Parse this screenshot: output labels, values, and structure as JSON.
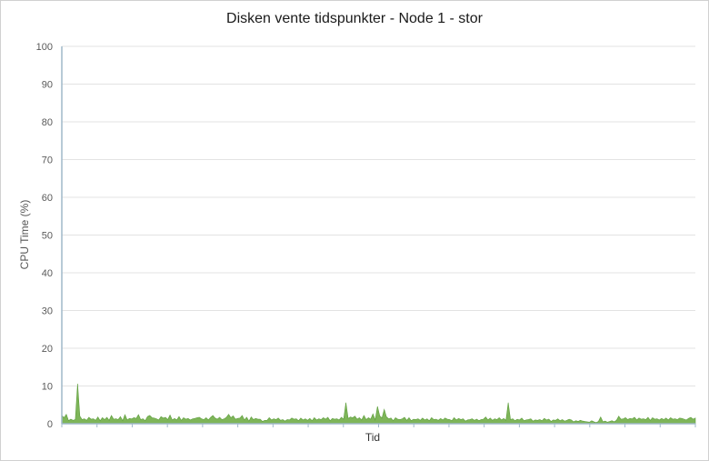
{
  "chart_data": {
    "type": "area",
    "title": "Disken vente tidspunkter - Node 1 - stor",
    "xlabel": "Tid",
    "ylabel": "CPU Time (%)",
    "ylim": [
      0,
      100
    ],
    "yticks": [
      0,
      10,
      20,
      30,
      40,
      50,
      60,
      70,
      80,
      90,
      100
    ],
    "grid": true,
    "legend": "none",
    "colors": {
      "fill": "#70ad47",
      "stroke": "#5b9c3a",
      "grid": "#e3e3e3",
      "axis": "#9fb8c9"
    },
    "series": [
      {
        "values": [
          2.2,
          1.6,
          2.5,
          0.8,
          1.2,
          0.9,
          1.1,
          10.6,
          2.0,
          1.1,
          1.3,
          0.9,
          1.7,
          1.2,
          1.3,
          0.9,
          1.8,
          0.8,
          1.6,
          1.1,
          1.7,
          0.9,
          2.2,
          1.2,
          1.3,
          1.1,
          1.9,
          0.8,
          2.4,
          1.0,
          1.4,
          1.3,
          1.6,
          1.4,
          2.4,
          1.1,
          1.3,
          0.8,
          1.9,
          2.2,
          1.6,
          1.5,
          1.3,
          1.0,
          1.9,
          1.5,
          1.7,
          1.1,
          2.3,
          1.0,
          1.4,
          1.0,
          1.9,
          0.9,
          1.6,
          1.2,
          1.4,
          1.0,
          1.3,
          1.4,
          1.6,
          1.7,
          1.3,
          1.1,
          1.6,
          1.0,
          1.7,
          2.2,
          1.5,
          1.2,
          1.7,
          1.1,
          1.3,
          1.7,
          2.5,
          1.6,
          2.1,
          1.2,
          1.4,
          1.5,
          2.2,
          1.0,
          1.7,
          0.7,
          1.8,
          1.1,
          1.4,
          1.2,
          1.2,
          0.6,
          0.9,
          0.9,
          1.6,
          1.0,
          1.3,
          1.1,
          1.5,
          0.9,
          1.1,
          0.7,
          1.1,
          1.0,
          1.5,
          1.2,
          1.3,
          0.8,
          1.5,
          1.0,
          1.3,
          0.9,
          1.4,
          0.8,
          1.6,
          1.0,
          1.3,
          1.1,
          1.6,
          1.2,
          1.7,
          0.8,
          1.4,
          1.2,
          1.3,
          1.0,
          1.7,
          1.2,
          5.6,
          1.4,
          1.8,
          1.6,
          2.0,
          1.2,
          1.6,
          1.0,
          2.2,
          1.1,
          1.6,
          1.2,
          2.6,
          1.0,
          4.6,
          2.1,
          1.5,
          3.8,
          1.8,
          1.3,
          1.5,
          0.8,
          1.6,
          1.2,
          1.1,
          1.3,
          1.7,
          0.9,
          1.6,
          0.8,
          1.2,
          1.1,
          1.3,
          0.9,
          1.5,
          1.0,
          1.3,
          0.8,
          1.6,
          1.1,
          1.2,
          0.9,
          1.4,
          1.0,
          1.5,
          1.2,
          1.1,
          0.8,
          1.6,
          1.0,
          1.4,
          1.1,
          1.3,
          0.7,
          1.0,
          1.1,
          1.3,
          0.9,
          1.2,
          0.8,
          1.1,
          1.2,
          1.8,
          1.0,
          1.5,
          0.9,
          1.3,
          1.1,
          1.6,
          1.0,
          1.4,
          0.9,
          5.6,
          1.1,
          1.3,
          0.8,
          1.2,
          1.0,
          1.5,
          0.8,
          1.0,
          1.1,
          1.3,
          0.7,
          1.0,
          0.9,
          1.1,
          0.8,
          1.4,
          1.0,
          1.2,
          0.6,
          1.0,
          0.9,
          1.3,
          0.8,
          1.1,
          0.7,
          0.9,
          1.2,
          1.0,
          0.5,
          0.8,
          0.6,
          0.9,
          0.7,
          0.6,
          0.5,
          0.4,
          0.8,
          0.5,
          0.3,
          0.6,
          1.8,
          0.5,
          0.7,
          0.4,
          0.6,
          0.8,
          0.5,
          0.9,
          2.0,
          1.2,
          1.3,
          1.6,
          1.1,
          1.4,
          1.3,
          1.7,
          1.0,
          1.5,
          1.2,
          1.3,
          1.1,
          1.7,
          0.9,
          1.6,
          1.2,
          1.3,
          1.0,
          1.4,
          1.1,
          1.5,
          1.0,
          1.6,
          1.2,
          1.3,
          1.1,
          1.5,
          1.4,
          1.2,
          1.0,
          1.4,
          1.7,
          1.2,
          1.5
        ]
      }
    ]
  }
}
